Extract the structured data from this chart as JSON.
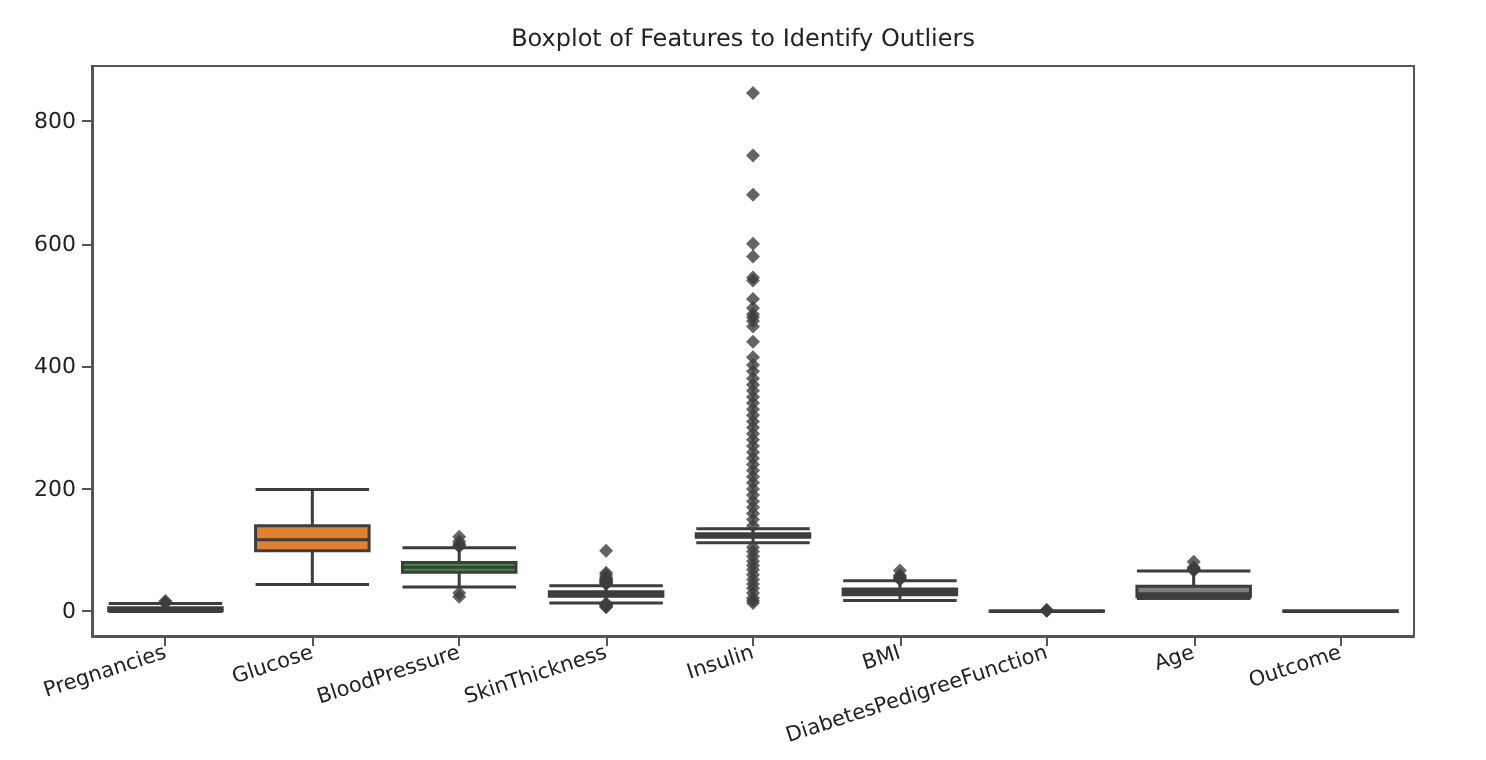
{
  "chart_data": {
    "type": "box",
    "title": "Boxplot of Features to Identify Outliers",
    "categories": [
      "Pregnancies",
      "Glucose",
      "BloodPressure",
      "SkinThickness",
      "Insulin",
      "BMI",
      "DiabetesPedigreeFunction",
      "Age",
      "Outcome"
    ],
    "colors": [
      "#3274a1",
      "#e1812c",
      "#3a923a",
      "#c03d3e",
      "#9372b2",
      "#845b53",
      "#d684bd",
      "#7f7f7f",
      "#a9aa35"
    ],
    "boxes": [
      {
        "low": 0,
        "q1": 1,
        "median": 3,
        "q3": 6,
        "high": 13,
        "outliers": [
          14,
          15,
          17
        ]
      },
      {
        "low": 44,
        "q1": 99,
        "median": 117,
        "q3": 140,
        "high": 199
      },
      {
        "low": 40,
        "q1": 64,
        "median": 72,
        "q3": 80,
        "high": 104,
        "outliers": [
          24,
          30,
          106,
          108,
          110,
          114,
          122
        ]
      },
      {
        "low": 14,
        "q1": 25,
        "median": 29,
        "q3": 32,
        "high": 42,
        "outliers": [
          7,
          8,
          10,
          11,
          12,
          13,
          45,
          46,
          47,
          48,
          49,
          50,
          51,
          52,
          54,
          56,
          60,
          63,
          99
        ]
      },
      {
        "low": 112,
        "q1": 121,
        "median": 125,
        "q3": 127,
        "high": 135,
        "outliers": [
          14,
          18,
          22,
          30,
          38,
          45,
          52,
          60,
          68,
          75,
          82,
          90,
          98,
          105,
          140,
          150,
          160,
          170,
          180,
          190,
          200,
          210,
          220,
          230,
          240,
          250,
          260,
          270,
          280,
          290,
          300,
          310,
          320,
          330,
          340,
          350,
          360,
          370,
          380,
          392,
          402,
          415,
          440,
          465,
          474,
          480,
          485,
          495,
          510,
          540,
          545,
          579,
          600,
          680,
          744,
          846
        ]
      },
      {
        "low": 18,
        "q1": 27.5,
        "median": 32,
        "q3": 36.5,
        "high": 50,
        "outliers": [
          52,
          53,
          55,
          57,
          59,
          67
        ]
      },
      {
        "low": 0.08,
        "q1": 0.24,
        "median": 0.37,
        "q3": 0.63,
        "high": 1.19,
        "outliers": [
          1.3,
          1.6,
          2.0,
          2.4
        ]
      },
      {
        "low": 21,
        "q1": 24,
        "median": 29,
        "q3": 41,
        "high": 66,
        "outliers": [
          67,
          68,
          69,
          70,
          72,
          81
        ]
      },
      {
        "low": 0,
        "q1": 0,
        "median": 0,
        "q3": 1,
        "high": 1
      }
    ],
    "ylim": [
      -40,
      890
    ],
    "yticks": [
      0,
      200,
      400,
      600,
      800
    ],
    "marker": "diamond"
  }
}
